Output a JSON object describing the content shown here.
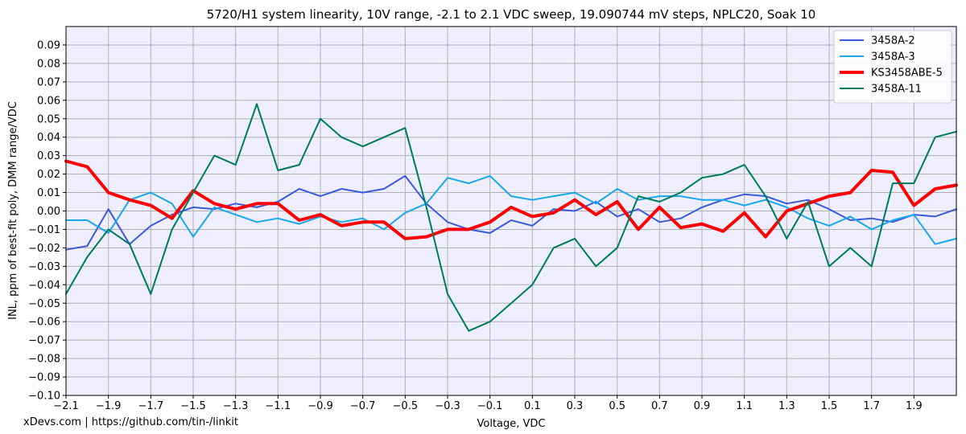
{
  "footer_text": "xDevs.com | https://github.com/tin-/linkit",
  "chart_data": {
    "type": "line",
    "title": "5720/H1 system linearity, 10V range, -2.1 to 2.1 VDC sweep, 19.090744 mV steps, NPLC20, Soak 10",
    "xlabel": "Voltage, VDC",
    "ylabel": "INL, ppm of best-fit poly, DMM range/VDC",
    "xlim": [
      -2.1,
      2.1
    ],
    "ylim": [
      -0.1,
      0.1
    ],
    "grid": true,
    "legend_position": "top-right",
    "background_color": "#eeeeff",
    "x_ticks": [
      -2.1,
      -1.9,
      -1.7,
      -1.5,
      -1.3,
      -1.1,
      -0.9,
      -0.7,
      -0.5,
      -0.3,
      -0.1,
      0.1,
      0.3,
      0.5,
      0.7,
      0.9,
      1.1,
      1.3,
      1.5,
      1.7,
      1.9
    ],
    "x_tick_labels": [
      "−2.1",
      "−1.9",
      "−1.7",
      "−1.5",
      "−1.3",
      "−1.1",
      "−0.9",
      "−0.7",
      "−0.5",
      "−0.3",
      "−0.1",
      "0.1",
      "0.3",
      "0.5",
      "0.7",
      "0.9",
      "1.1",
      "1.3",
      "1.5",
      "1.7",
      "1.9"
    ],
    "y_ticks": [
      0.09,
      0.08,
      0.07,
      0.06,
      0.05,
      0.04,
      0.03,
      0.02,
      0.01,
      0.0,
      -0.01,
      -0.02,
      -0.03,
      -0.04,
      -0.05,
      -0.06,
      -0.07,
      -0.08,
      -0.09,
      -0.1
    ],
    "y_tick_labels": [
      "0.09",
      "0.08",
      "0.07",
      "0.06",
      "0.05",
      "0.04",
      "0.03",
      "0.02",
      "0.01",
      "0.00",
      "−0.01",
      "−0.02",
      "−0.03",
      "−0.04",
      "−0.05",
      "−0.06",
      "−0.07",
      "−0.08",
      "−0.09",
      "−0.10"
    ],
    "series": [
      {
        "name": "3458A-2",
        "color": "#3a5bdc",
        "width": 2,
        "x": [
          -2.1,
          -2.0,
          -1.9,
          -1.8,
          -1.7,
          -1.6,
          -1.5,
          -1.4,
          -1.3,
          -1.2,
          -1.1,
          -1.0,
          -0.9,
          -0.8,
          -0.7,
          -0.6,
          -0.5,
          -0.4,
          -0.3,
          -0.2,
          -0.1,
          0.0,
          0.1,
          0.2,
          0.3,
          0.4,
          0.5,
          0.6,
          0.7,
          0.8,
          0.9,
          1.0,
          1.1,
          1.2,
          1.3,
          1.4,
          1.5,
          1.6,
          1.7,
          1.8,
          1.9,
          2.0,
          2.1
        ],
        "y": [
          -0.021,
          -0.019,
          0.001,
          -0.018,
          -0.008,
          -0.002,
          0.002,
          0.001,
          0.004,
          0.002,
          0.005,
          0.012,
          0.008,
          0.012,
          0.01,
          0.012,
          0.019,
          0.004,
          -0.006,
          -0.01,
          -0.012,
          -0.005,
          -0.008,
          0.001,
          0.0,
          0.005,
          -0.003,
          0.001,
          -0.006,
          -0.004,
          0.002,
          0.006,
          0.009,
          0.008,
          0.004,
          0.006,
          0.001,
          -0.005,
          -0.004,
          -0.006,
          -0.002,
          -0.003,
          0.001
        ]
      },
      {
        "name": "3458A-3",
        "color": "#1aa7ec",
        "width": 2,
        "x": [
          -2.1,
          -2.0,
          -1.9,
          -1.8,
          -1.7,
          -1.6,
          -1.5,
          -1.4,
          -1.3,
          -1.2,
          -1.1,
          -1.0,
          -0.9,
          -0.8,
          -0.7,
          -0.6,
          -0.5,
          -0.4,
          -0.3,
          -0.2,
          -0.1,
          0.0,
          0.1,
          0.2,
          0.3,
          0.4,
          0.5,
          0.6,
          0.7,
          0.8,
          0.9,
          1.0,
          1.1,
          1.2,
          1.3,
          1.4,
          1.5,
          1.6,
          1.7,
          1.8,
          1.9,
          2.0,
          2.1
        ],
        "y": [
          -0.005,
          -0.005,
          -0.012,
          0.006,
          0.01,
          0.004,
          -0.014,
          0.002,
          -0.002,
          -0.006,
          -0.004,
          -0.007,
          -0.003,
          -0.006,
          -0.004,
          -0.01,
          -0.001,
          0.004,
          0.018,
          0.015,
          0.019,
          0.008,
          0.006,
          0.008,
          0.01,
          0.004,
          0.012,
          0.006,
          0.008,
          0.008,
          0.006,
          0.006,
          0.003,
          0.006,
          0.002,
          -0.004,
          -0.008,
          -0.003,
          -0.01,
          -0.005,
          -0.002,
          -0.018,
          -0.015
        ]
      },
      {
        "name": "KS3458ABE-5",
        "color": "#ff0000",
        "width": 4,
        "x": [
          -2.1,
          -2.0,
          -1.9,
          -1.8,
          -1.7,
          -1.6,
          -1.5,
          -1.4,
          -1.3,
          -1.2,
          -1.1,
          -1.0,
          -0.9,
          -0.8,
          -0.7,
          -0.6,
          -0.5,
          -0.4,
          -0.3,
          -0.2,
          -0.1,
          0.0,
          0.1,
          0.2,
          0.3,
          0.4,
          0.5,
          0.6,
          0.7,
          0.8,
          0.9,
          1.0,
          1.1,
          1.2,
          1.3,
          1.4,
          1.5,
          1.6,
          1.7,
          1.8,
          1.9,
          2.0,
          2.1
        ],
        "y": [
          0.027,
          0.024,
          0.01,
          0.006,
          0.003,
          -0.004,
          0.011,
          0.004,
          0.001,
          0.004,
          0.004,
          -0.005,
          -0.002,
          -0.008,
          -0.006,
          -0.006,
          -0.015,
          -0.014,
          -0.01,
          -0.01,
          -0.006,
          0.002,
          -0.003,
          -0.001,
          0.006,
          -0.002,
          0.005,
          -0.01,
          0.002,
          -0.009,
          -0.007,
          -0.011,
          -0.001,
          -0.014,
          0.0,
          0.004,
          0.008,
          0.01,
          0.022,
          0.021,
          0.003,
          0.012,
          0.014
        ]
      },
      {
        "name": "3458A-11",
        "color": "#007a5e",
        "width": 2,
        "x": [
          -2.1,
          -2.0,
          -1.9,
          -1.8,
          -1.7,
          -1.6,
          -1.5,
          -1.4,
          -1.3,
          -1.2,
          -1.1,
          -1.0,
          -0.9,
          -0.8,
          -0.7,
          -0.6,
          -0.5,
          -0.4,
          -0.3,
          -0.2,
          -0.1,
          0.0,
          0.1,
          0.2,
          0.3,
          0.4,
          0.5,
          0.6,
          0.7,
          0.8,
          0.9,
          1.0,
          1.1,
          1.2,
          1.3,
          1.4,
          1.5,
          1.6,
          1.7,
          1.8,
          1.9,
          2.0,
          2.1
        ],
        "y": [
          -0.045,
          -0.025,
          -0.01,
          -0.018,
          -0.045,
          -0.01,
          0.01,
          0.03,
          0.025,
          0.058,
          0.022,
          0.025,
          0.05,
          0.04,
          0.035,
          0.04,
          0.045,
          0.002,
          -0.045,
          -0.065,
          -0.06,
          -0.05,
          -0.04,
          -0.02,
          -0.015,
          -0.03,
          -0.02,
          0.008,
          0.005,
          0.01,
          0.018,
          0.02,
          0.025,
          0.008,
          -0.015,
          0.005,
          -0.03,
          -0.02,
          -0.03,
          0.015,
          0.015,
          0.04,
          0.043
        ]
      }
    ]
  }
}
